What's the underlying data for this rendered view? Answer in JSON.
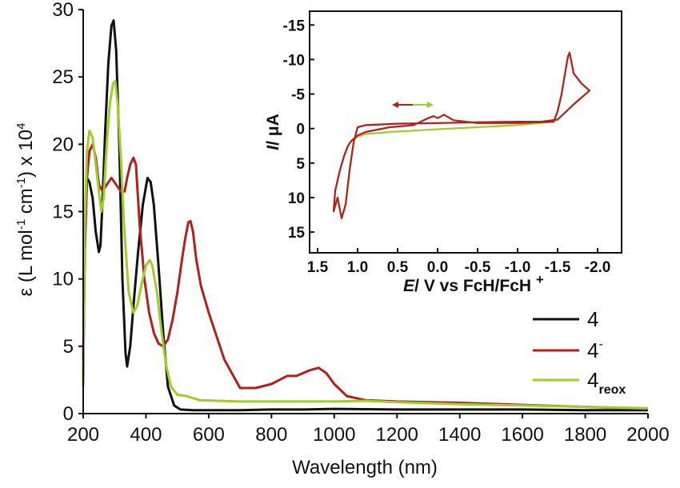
{
  "colors": {
    "black": "#111111",
    "red": "#b2201e",
    "green": "#9fcc2e"
  },
  "chart_data": [
    {
      "type": "line",
      "title": "",
      "xlabel": "Wavelength (nm)",
      "ylabel_parts": {
        "main": "ε (L mol",
        "sup1": "-1",
        "mid": " cm",
        "sup2": "-1",
        "end": ") x 10",
        "sup3": "4"
      },
      "xlim": [
        200,
        2000
      ],
      "ylim": [
        0,
        30
      ],
      "x_ticks": [
        "200",
        "400",
        "600",
        "800",
        "1000",
        "1200",
        "1400",
        "1600",
        "1800",
        "2000"
      ],
      "x_tick_values": [
        200,
        400,
        600,
        800,
        1000,
        1200,
        1400,
        1600,
        1800,
        2000
      ],
      "y_ticks": [
        "0",
        "5",
        "10",
        "15",
        "20",
        "25",
        "30"
      ],
      "y_tick_values": [
        0,
        5,
        10,
        15,
        20,
        25,
        30
      ],
      "legend": {
        "position": "bottom-right",
        "entries": [
          {
            "label": "4",
            "sup": "",
            "sub": "",
            "color": "#111111"
          },
          {
            "label": "4",
            "sup": "-",
            "sub": "",
            "color": "#b2201e"
          },
          {
            "label": "4",
            "sup": "",
            "sub": "reox",
            "color": "#9fcc2e"
          }
        ]
      },
      "series": [
        {
          "color": "#111111",
          "x": [
            200,
            205,
            212,
            220,
            230,
            240,
            250,
            255,
            262,
            270,
            280,
            290,
            297,
            305,
            315,
            325,
            335,
            340,
            350,
            360,
            375,
            390,
            405,
            415,
            425,
            440,
            455,
            470,
            490,
            510,
            550,
            600,
            700,
            800,
            900,
            1000,
            1200,
            1400,
            1600,
            1800,
            2000
          ],
          "y": [
            2,
            13,
            17.5,
            17.2,
            16,
            13.5,
            12,
            12.5,
            16,
            21,
            26,
            28.8,
            29.2,
            27,
            20,
            10,
            4.5,
            3.5,
            5,
            8,
            12,
            15.5,
            17.5,
            17.2,
            15.5,
            11,
            6,
            2,
            0.6,
            0.3,
            0.25,
            0.25,
            0.25,
            0.3,
            0.3,
            0.35,
            0.3,
            0.3,
            0.3,
            0.25,
            0.25
          ]
        },
        {
          "color": "#b2201e",
          "x": [
            200,
            205,
            212,
            220,
            230,
            240,
            250,
            262,
            275,
            290,
            305,
            320,
            332,
            340,
            350,
            360,
            368,
            380,
            395,
            410,
            425,
            440,
            455,
            470,
            485,
            500,
            515,
            525,
            535,
            542,
            550,
            560,
            575,
            600,
            650,
            700,
            750,
            800,
            850,
            880,
            920,
            950,
            975,
            1000,
            1040,
            1100,
            1200,
            1400,
            1600,
            1800,
            2000
          ],
          "y": [
            4,
            12,
            17.5,
            19.5,
            20,
            19,
            17,
            16.5,
            17,
            17.5,
            17,
            16.5,
            16.5,
            17.5,
            18.5,
            19,
            18.5,
            14,
            10,
            7.5,
            6,
            5.2,
            5.0,
            5.5,
            7,
            9,
            11.5,
            13,
            14.2,
            14.3,
            13.5,
            11.5,
            9.5,
            7.5,
            4,
            1.9,
            1.9,
            2.2,
            2.8,
            2.8,
            3.2,
            3.4,
            3.0,
            2.2,
            1.3,
            1.0,
            0.9,
            0.8,
            0.65,
            0.5,
            0.35
          ]
        },
        {
          "color": "#9fcc2e",
          "x": [
            200,
            205,
            212,
            220,
            230,
            240,
            250,
            258,
            265,
            275,
            285,
            295,
            302,
            310,
            320,
            330,
            345,
            360,
            372,
            385,
            400,
            412,
            420,
            435,
            450,
            465,
            480,
            500,
            530,
            570,
            700,
            900,
            1000,
            1100,
            1200,
            1400,
            1600,
            1800,
            2000
          ],
          "y": [
            2,
            14,
            19.5,
            21,
            20.5,
            18.5,
            16.5,
            15,
            16,
            20,
            23,
            24.5,
            24.7,
            23,
            19,
            14,
            9,
            7.5,
            8,
            9.5,
            11,
            11.4,
            11,
            9,
            6,
            3.5,
            2,
            1.4,
            1.3,
            1.0,
            0.9,
            0.9,
            0.9,
            0.95,
            0.85,
            0.7,
            0.6,
            0.5,
            0.4
          ]
        }
      ]
    },
    {
      "type": "line",
      "title": "",
      "xlabel_parts": {
        "italic": "E",
        "rest": "/ V vs FcH/FcH ",
        "sup": "+"
      },
      "ylabel_parts": {
        "italic": "I",
        "rest": "/ μA"
      },
      "xlim": [
        1.6,
        -2.3
      ],
      "ylim": [
        18,
        -17
      ],
      "x_ticks": [
        "1.5",
        "1.0",
        "0.5",
        "0.0",
        "-0.5",
        "-1.0",
        "-1.5",
        "-2.0"
      ],
      "x_tick_values": [
        1.5,
        1.0,
        0.5,
        0.0,
        -0.5,
        -1.0,
        -1.5,
        -2.0
      ],
      "y_ticks": [
        "-15",
        "-10",
        "-5",
        "0",
        "5",
        "10",
        "15"
      ],
      "y_tick_values": [
        -15,
        -10,
        -5,
        0,
        5,
        10,
        15
      ],
      "annotation": "scan-direction double arrow",
      "series": [
        {
          "color": "#9fcc2e",
          "x": [
            -1.9,
            -1.7,
            -1.5,
            -1.3,
            -1.0,
            -0.5,
            0.0,
            0.5,
            0.9,
            1.0,
            1.05,
            1.1,
            1.15,
            1.2,
            1.25,
            1.3,
            1.28,
            1.22,
            1.17,
            1.12,
            1.08,
            1.0,
            0.9,
            0.6,
            0.3,
            0.0,
            -0.5,
            -1.0,
            -1.45,
            -1.5,
            -1.55,
            -1.6,
            -1.63,
            -1.65,
            -1.7,
            -1.8,
            -1.9
          ],
          "y": [
            -5.5,
            -3.5,
            -1.3,
            -1.0,
            -1.0,
            -0.9,
            -0.8,
            -0.7,
            -0.5,
            -0.2,
            2,
            6,
            11,
            13,
            10,
            12,
            9,
            6,
            4,
            2.5,
            1.8,
            1.2,
            0.8,
            0.5,
            0.3,
            0.1,
            -0.2,
            -0.5,
            -1.0,
            -2.5,
            -5,
            -8.5,
            -10.5,
            -11,
            -8,
            -6.5,
            -5.5
          ]
        },
        {
          "color": "#b2201e",
          "x": [
            -1.9,
            -1.7,
            -1.5,
            -1.3,
            -1.0,
            -0.5,
            0.0,
            0.5,
            0.9,
            1.0,
            1.05,
            1.1,
            1.15,
            1.2,
            1.25,
            1.3,
            1.28,
            1.22,
            1.17,
            1.12,
            1.08,
            1.0,
            0.9,
            0.6,
            0.3,
            0.12,
            0.05,
            0.0,
            -0.08,
            -0.2,
            -0.5,
            -1.0,
            -1.45,
            -1.5,
            -1.55,
            -1.6,
            -1.63,
            -1.65,
            -1.7,
            -1.8,
            -1.9
          ],
          "y": [
            -5.5,
            -3.5,
            -1.3,
            -1.0,
            -1.0,
            -0.9,
            -0.8,
            -0.7,
            -0.5,
            -0.2,
            2,
            6,
            11,
            13,
            10,
            12,
            9,
            6,
            4,
            2.5,
            1.8,
            1.0,
            0.5,
            -0.2,
            -0.5,
            -1.5,
            -1.8,
            -1.5,
            -2.0,
            -1.2,
            -0.8,
            -0.8,
            -1.0,
            -2.5,
            -5,
            -8.5,
            -10.5,
            -11,
            -8,
            -6.5,
            -5.5
          ]
        }
      ]
    }
  ]
}
